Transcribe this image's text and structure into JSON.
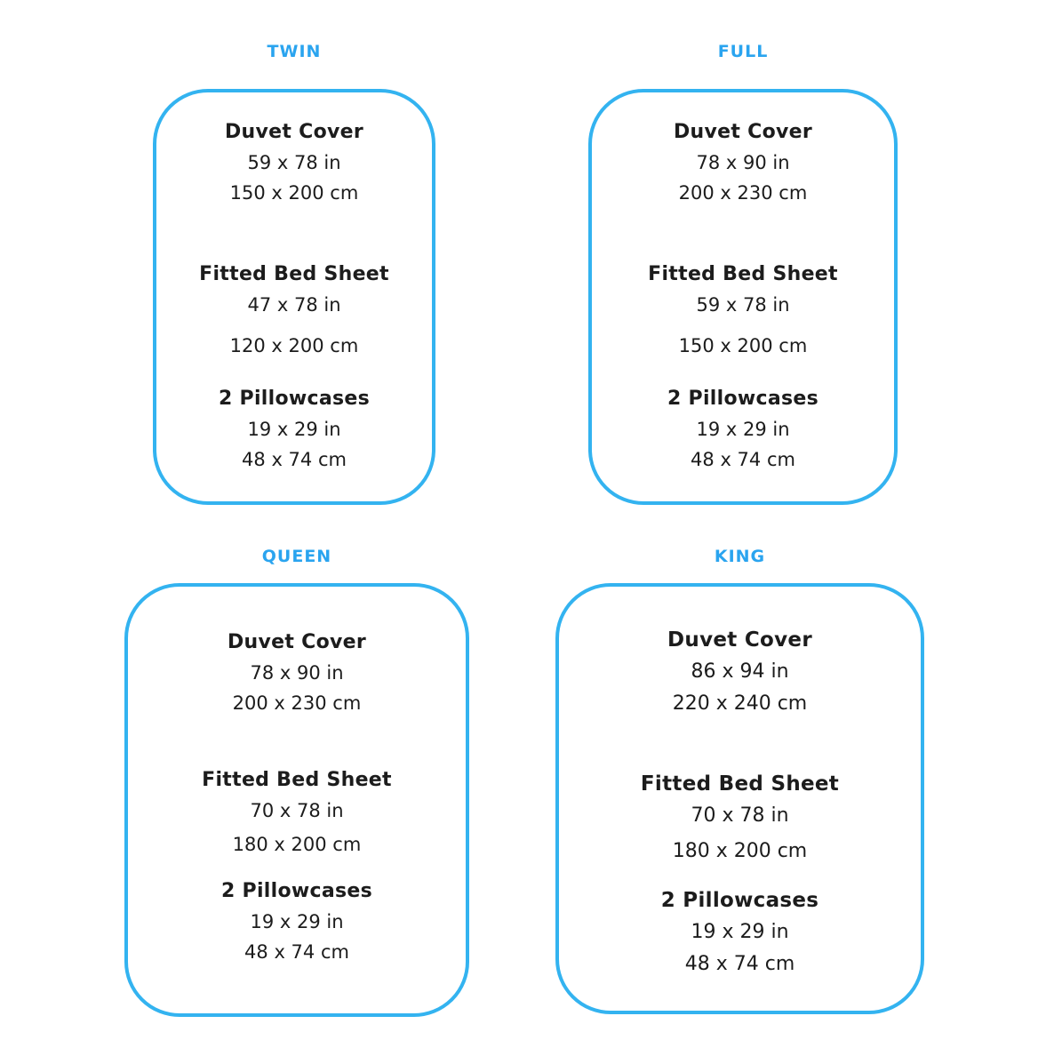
{
  "accent_title_color": "#2aa4ef",
  "accent_border_color": "#33b3f0",
  "text_color": "#1c1c1c",
  "panels": [
    {
      "id": "twin",
      "title": "TWIN",
      "items": [
        {
          "name": "Duvet Cover",
          "inches": "59 x 78 in",
          "cm": "150 x 200 cm"
        },
        {
          "name": "Fitted Bed Sheet",
          "inches": "47 x 78 in",
          "cm": "120 x 200 cm"
        },
        {
          "name": "2 Pillowcases",
          "inches": "19 x 29 in",
          "cm": "48 x 74 cm"
        }
      ]
    },
    {
      "id": "full",
      "title": "FULL",
      "items": [
        {
          "name": "Duvet Cover",
          "inches": "78 x 90 in",
          "cm": "200 x 230 cm"
        },
        {
          "name": "Fitted Bed Sheet",
          "inches": "59 x 78 in",
          "cm": "150 x 200 cm"
        },
        {
          "name": "2 Pillowcases",
          "inches": "19 x 29 in",
          "cm": "48 x 74 cm"
        }
      ]
    },
    {
      "id": "queen",
      "title": "QUEEN",
      "items": [
        {
          "name": "Duvet Cover",
          "inches": "78 x 90 in",
          "cm": "200 x 230 cm"
        },
        {
          "name": "Fitted Bed Sheet",
          "inches": "70 x 78 in",
          "cm": "180 x 200 cm"
        },
        {
          "name": "2 Pillowcases",
          "inches": "19 x 29 in",
          "cm": "48 x 74 cm"
        }
      ]
    },
    {
      "id": "king",
      "title": "KING",
      "items": [
        {
          "name": "Duvet Cover",
          "inches": "86 x 94 in",
          "cm": "220 x 240 cm"
        },
        {
          "name": "Fitted Bed Sheet",
          "inches": "70 x 78 in",
          "cm": "180 x 200 cm"
        },
        {
          "name": "2 Pillowcases",
          "inches": "19 x 29 in",
          "cm": "48 x 74 cm"
        }
      ]
    }
  ]
}
